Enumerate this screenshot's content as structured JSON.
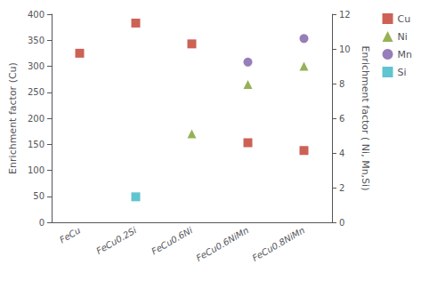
{
  "chart_data": {
    "type": "scatter",
    "categories": [
      "FeCu",
      "FeCu0.2Si",
      "FeCu0.6Ni",
      "FeCu0.6NiMn",
      "FeCu0.8NiMn"
    ],
    "series": [
      {
        "name": "Cu",
        "color": "#c0392b",
        "marker": "square",
        "values": [
          325,
          383,
          343,
          153,
          138
        ]
      },
      {
        "name": "Ni",
        "color": "#7d9e2b",
        "marker": "triangle",
        "axis": "y2",
        "values": [
          null,
          null,
          5.1,
          7.95,
          9.0
        ]
      },
      {
        "name": "Mn",
        "color": "#7b5ea7",
        "marker": "circle",
        "axis": "y2",
        "values": [
          null,
          null,
          null,
          9.24,
          10.6
        ]
      },
      {
        "name": "Si",
        "color": "#3ab5c6",
        "marker": "square",
        "axis": "y2",
        "values": [
          null,
          1.47,
          null,
          null,
          null
        ]
      }
    ],
    "ylabel": "Enrichment factor (Cu)",
    "y2label": "Enrichment factor ( Ni, Mn,Si)",
    "ylim": [
      0,
      400
    ],
    "yticks": [
      0,
      50,
      100,
      150,
      200,
      250,
      300,
      350,
      400
    ],
    "y2lim": [
      0,
      12
    ],
    "y2ticks": [
      0,
      2,
      4,
      6,
      8,
      10,
      12
    ],
    "grid": false,
    "legend": "upper right"
  }
}
